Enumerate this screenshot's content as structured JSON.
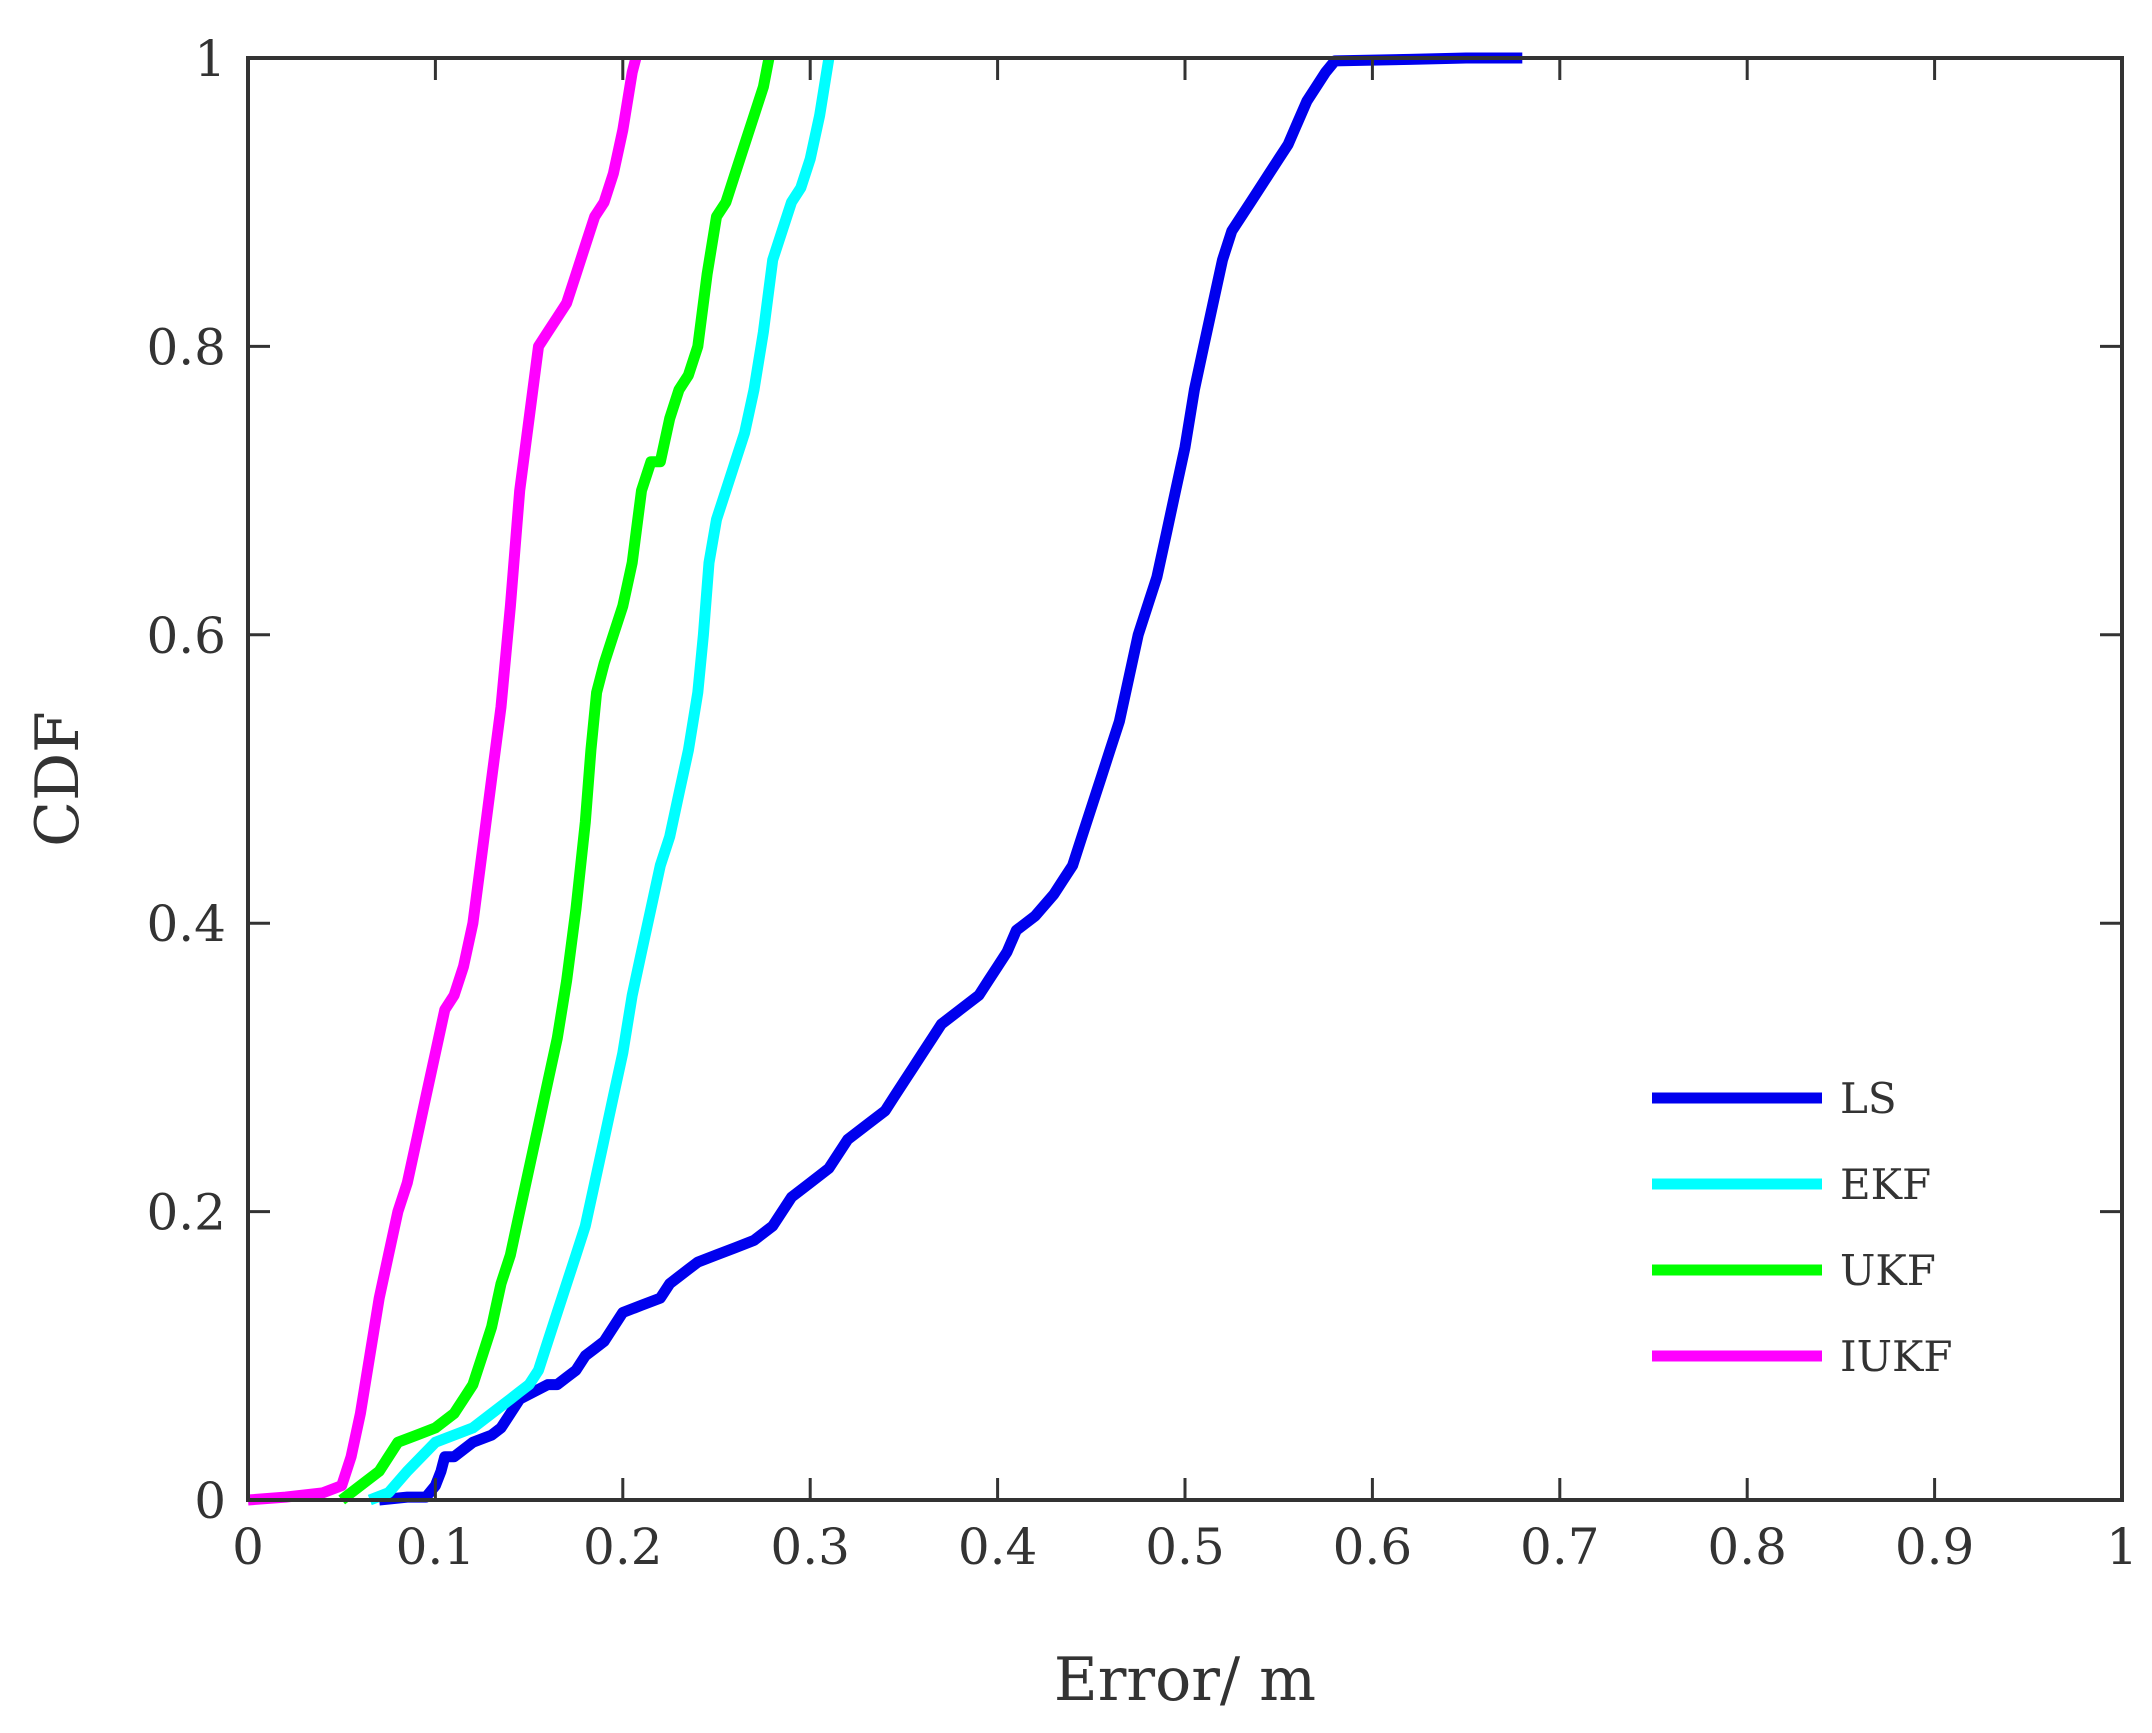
{
  "chart_data": {
    "type": "line",
    "xlabel": "Error/ m",
    "ylabel": "CDF",
    "xlim": [
      0,
      1
    ],
    "ylim": [
      0,
      1
    ],
    "grid": false,
    "legend_position": "bottom-right",
    "x_ticks": [
      "0",
      "0.1",
      "0.2",
      "0.3",
      "0.4",
      "0.5",
      "0.6",
      "0.7",
      "0.8",
      "0.9",
      "1"
    ],
    "y_ticks": [
      "0",
      "0.2",
      "0.4",
      "0.6",
      "0.8",
      "1"
    ],
    "series": [
      {
        "name": "LS",
        "color": "#0000ee",
        "points": [
          [
            0.07,
            0
          ],
          [
            0.085,
            0.002
          ],
          [
            0.095,
            0.002
          ],
          [
            0.1,
            0.01
          ],
          [
            0.103,
            0.02
          ],
          [
            0.105,
            0.03
          ],
          [
            0.11,
            0.03
          ],
          [
            0.115,
            0.035
          ],
          [
            0.12,
            0.04
          ],
          [
            0.13,
            0.045
          ],
          [
            0.135,
            0.05
          ],
          [
            0.14,
            0.06
          ],
          [
            0.145,
            0.07
          ],
          [
            0.16,
            0.08
          ],
          [
            0.165,
            0.08
          ],
          [
            0.17,
            0.085
          ],
          [
            0.175,
            0.09
          ],
          [
            0.18,
            0.1
          ],
          [
            0.185,
            0.105
          ],
          [
            0.19,
            0.11
          ],
          [
            0.195,
            0.12
          ],
          [
            0.2,
            0.13
          ],
          [
            0.21,
            0.135
          ],
          [
            0.22,
            0.14
          ],
          [
            0.225,
            0.15
          ],
          [
            0.23,
            0.155
          ],
          [
            0.235,
            0.16
          ],
          [
            0.24,
            0.165
          ],
          [
            0.25,
            0.17
          ],
          [
            0.26,
            0.175
          ],
          [
            0.27,
            0.18
          ],
          [
            0.28,
            0.19
          ],
          [
            0.285,
            0.2
          ],
          [
            0.29,
            0.21
          ],
          [
            0.3,
            0.22
          ],
          [
            0.31,
            0.23
          ],
          [
            0.315,
            0.24
          ],
          [
            0.32,
            0.25
          ],
          [
            0.33,
            0.26
          ],
          [
            0.34,
            0.27
          ],
          [
            0.345,
            0.28
          ],
          [
            0.35,
            0.29
          ],
          [
            0.355,
            0.3
          ],
          [
            0.36,
            0.31
          ],
          [
            0.365,
            0.32
          ],
          [
            0.37,
            0.33
          ],
          [
            0.375,
            0.335
          ],
          [
            0.38,
            0.34
          ],
          [
            0.39,
            0.35
          ],
          [
            0.395,
            0.36
          ],
          [
            0.4,
            0.37
          ],
          [
            0.405,
            0.38
          ],
          [
            0.41,
            0.395
          ],
          [
            0.42,
            0.405
          ],
          [
            0.43,
            0.42
          ],
          [
            0.435,
            0.43
          ],
          [
            0.44,
            0.44
          ],
          [
            0.445,
            0.46
          ],
          [
            0.45,
            0.48
          ],
          [
            0.455,
            0.5
          ],
          [
            0.46,
            0.52
          ],
          [
            0.465,
            0.54
          ],
          [
            0.47,
            0.57
          ],
          [
            0.475,
            0.6
          ],
          [
            0.48,
            0.62
          ],
          [
            0.485,
            0.64
          ],
          [
            0.49,
            0.67
          ],
          [
            0.495,
            0.7
          ],
          [
            0.5,
            0.73
          ],
          [
            0.505,
            0.77
          ],
          [
            0.51,
            0.8
          ],
          [
            0.515,
            0.83
          ],
          [
            0.52,
            0.86
          ],
          [
            0.525,
            0.88
          ],
          [
            0.53,
            0.89
          ],
          [
            0.535,
            0.9
          ],
          [
            0.54,
            0.91
          ],
          [
            0.545,
            0.92
          ],
          [
            0.55,
            0.93
          ],
          [
            0.555,
            0.94
          ],
          [
            0.56,
            0.955
          ],
          [
            0.565,
            0.97
          ],
          [
            0.57,
            0.98
          ],
          [
            0.575,
            0.99
          ],
          [
            0.58,
            0.998
          ],
          [
            0.62,
            0.999
          ],
          [
            0.65,
            1
          ],
          [
            0.68,
            1
          ]
        ]
      },
      {
        "name": "EKF",
        "color": "#00ffff",
        "points": [
          [
            0.065,
            0
          ],
          [
            0.075,
            0.005
          ],
          [
            0.085,
            0.02
          ],
          [
            0.1,
            0.04
          ],
          [
            0.12,
            0.05
          ],
          [
            0.13,
            0.06
          ],
          [
            0.14,
            0.07
          ],
          [
            0.145,
            0.075
          ],
          [
            0.15,
            0.08
          ],
          [
            0.155,
            0.09
          ],
          [
            0.16,
            0.11
          ],
          [
            0.165,
            0.13
          ],
          [
            0.17,
            0.15
          ],
          [
            0.175,
            0.17
          ],
          [
            0.18,
            0.19
          ],
          [
            0.185,
            0.22
          ],
          [
            0.19,
            0.25
          ],
          [
            0.195,
            0.28
          ],
          [
            0.2,
            0.31
          ],
          [
            0.205,
            0.35
          ],
          [
            0.21,
            0.38
          ],
          [
            0.215,
            0.41
          ],
          [
            0.22,
            0.44
          ],
          [
            0.225,
            0.46
          ],
          [
            0.23,
            0.49
          ],
          [
            0.235,
            0.52
          ],
          [
            0.24,
            0.56
          ],
          [
            0.243,
            0.6
          ],
          [
            0.246,
            0.65
          ],
          [
            0.25,
            0.68
          ],
          [
            0.255,
            0.7
          ],
          [
            0.26,
            0.72
          ],
          [
            0.265,
            0.74
          ],
          [
            0.27,
            0.77
          ],
          [
            0.275,
            0.81
          ],
          [
            0.28,
            0.86
          ],
          [
            0.285,
            0.88
          ],
          [
            0.29,
            0.9
          ],
          [
            0.295,
            0.91
          ],
          [
            0.3,
            0.93
          ],
          [
            0.305,
            0.96
          ],
          [
            0.31,
            1
          ]
        ]
      },
      {
        "name": "UKF",
        "color": "#00ff00",
        "points": [
          [
            0.05,
            0
          ],
          [
            0.06,
            0.01
          ],
          [
            0.07,
            0.02
          ],
          [
            0.08,
            0.04
          ],
          [
            0.09,
            0.045
          ],
          [
            0.1,
            0.05
          ],
          [
            0.11,
            0.06
          ],
          [
            0.115,
            0.07
          ],
          [
            0.12,
            0.08
          ],
          [
            0.125,
            0.1
          ],
          [
            0.13,
            0.12
          ],
          [
            0.135,
            0.15
          ],
          [
            0.14,
            0.17
          ],
          [
            0.145,
            0.2
          ],
          [
            0.15,
            0.23
          ],
          [
            0.155,
            0.26
          ],
          [
            0.16,
            0.29
          ],
          [
            0.165,
            0.32
          ],
          [
            0.17,
            0.36
          ],
          [
            0.175,
            0.41
          ],
          [
            0.18,
            0.47
          ],
          [
            0.183,
            0.52
          ],
          [
            0.186,
            0.56
          ],
          [
            0.19,
            0.58
          ],
          [
            0.195,
            0.6
          ],
          [
            0.2,
            0.62
          ],
          [
            0.205,
            0.65
          ],
          [
            0.21,
            0.7
          ],
          [
            0.215,
            0.72
          ],
          [
            0.22,
            0.72
          ],
          [
            0.225,
            0.75
          ],
          [
            0.23,
            0.77
          ],
          [
            0.235,
            0.78
          ],
          [
            0.24,
            0.8
          ],
          [
            0.245,
            0.85
          ],
          [
            0.25,
            0.89
          ],
          [
            0.255,
            0.9
          ],
          [
            0.26,
            0.92
          ],
          [
            0.265,
            0.94
          ],
          [
            0.27,
            0.96
          ],
          [
            0.275,
            0.98
          ],
          [
            0.278,
            1
          ]
        ]
      },
      {
        "name": "IUKF",
        "color": "#ff00ff",
        "points": [
          [
            0,
            0
          ],
          [
            0.02,
            0.002
          ],
          [
            0.04,
            0.005
          ],
          [
            0.05,
            0.01
          ],
          [
            0.055,
            0.03
          ],
          [
            0.06,
            0.06
          ],
          [
            0.065,
            0.1
          ],
          [
            0.07,
            0.14
          ],
          [
            0.075,
            0.17
          ],
          [
            0.08,
            0.2
          ],
          [
            0.085,
            0.22
          ],
          [
            0.09,
            0.25
          ],
          [
            0.095,
            0.28
          ],
          [
            0.1,
            0.31
          ],
          [
            0.105,
            0.34
          ],
          [
            0.11,
            0.35
          ],
          [
            0.115,
            0.37
          ],
          [
            0.12,
            0.4
          ],
          [
            0.125,
            0.45
          ],
          [
            0.13,
            0.5
          ],
          [
            0.135,
            0.55
          ],
          [
            0.14,
            0.62
          ],
          [
            0.145,
            0.7
          ],
          [
            0.15,
            0.75
          ],
          [
            0.155,
            0.8
          ],
          [
            0.16,
            0.81
          ],
          [
            0.165,
            0.82
          ],
          [
            0.17,
            0.83
          ],
          [
            0.175,
            0.85
          ],
          [
            0.18,
            0.87
          ],
          [
            0.185,
            0.89
          ],
          [
            0.19,
            0.9
          ],
          [
            0.195,
            0.92
          ],
          [
            0.2,
            0.95
          ],
          [
            0.205,
            0.99
          ],
          [
            0.207,
            1
          ]
        ]
      }
    ]
  }
}
